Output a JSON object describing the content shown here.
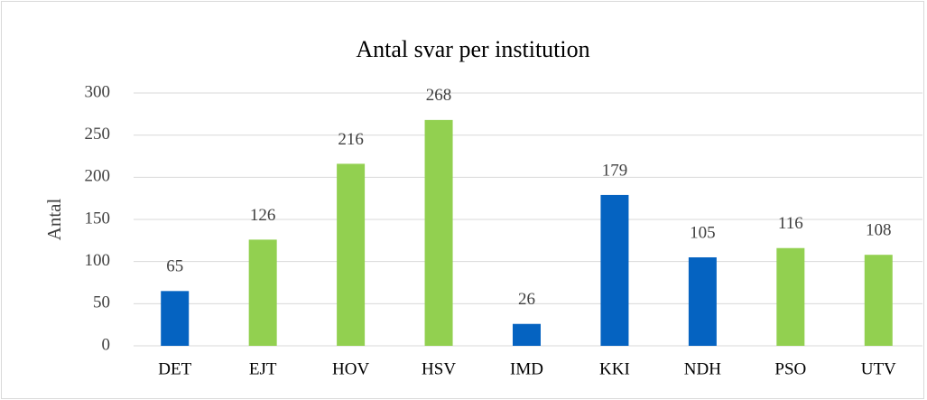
{
  "chart_data": {
    "type": "bar",
    "title": "Antal svar per institution",
    "y_label": "Antal",
    "categories": [
      "DET",
      "EJT",
      "HOV",
      "HSV",
      "IMD",
      "KKI",
      "NDH",
      "PSO",
      "UTV"
    ],
    "values": [
      65,
      126,
      216,
      268,
      26,
      179,
      105,
      116,
      108
    ],
    "colors": [
      "#0563c1",
      "#92d050",
      "#92d050",
      "#92d050",
      "#0563c1",
      "#0563c1",
      "#0563c1",
      "#92d050",
      "#92d050"
    ],
    "ylim": [
      0,
      300
    ],
    "yticks": [
      0,
      50,
      100,
      150,
      200,
      250,
      300
    ],
    "grid": true
  }
}
